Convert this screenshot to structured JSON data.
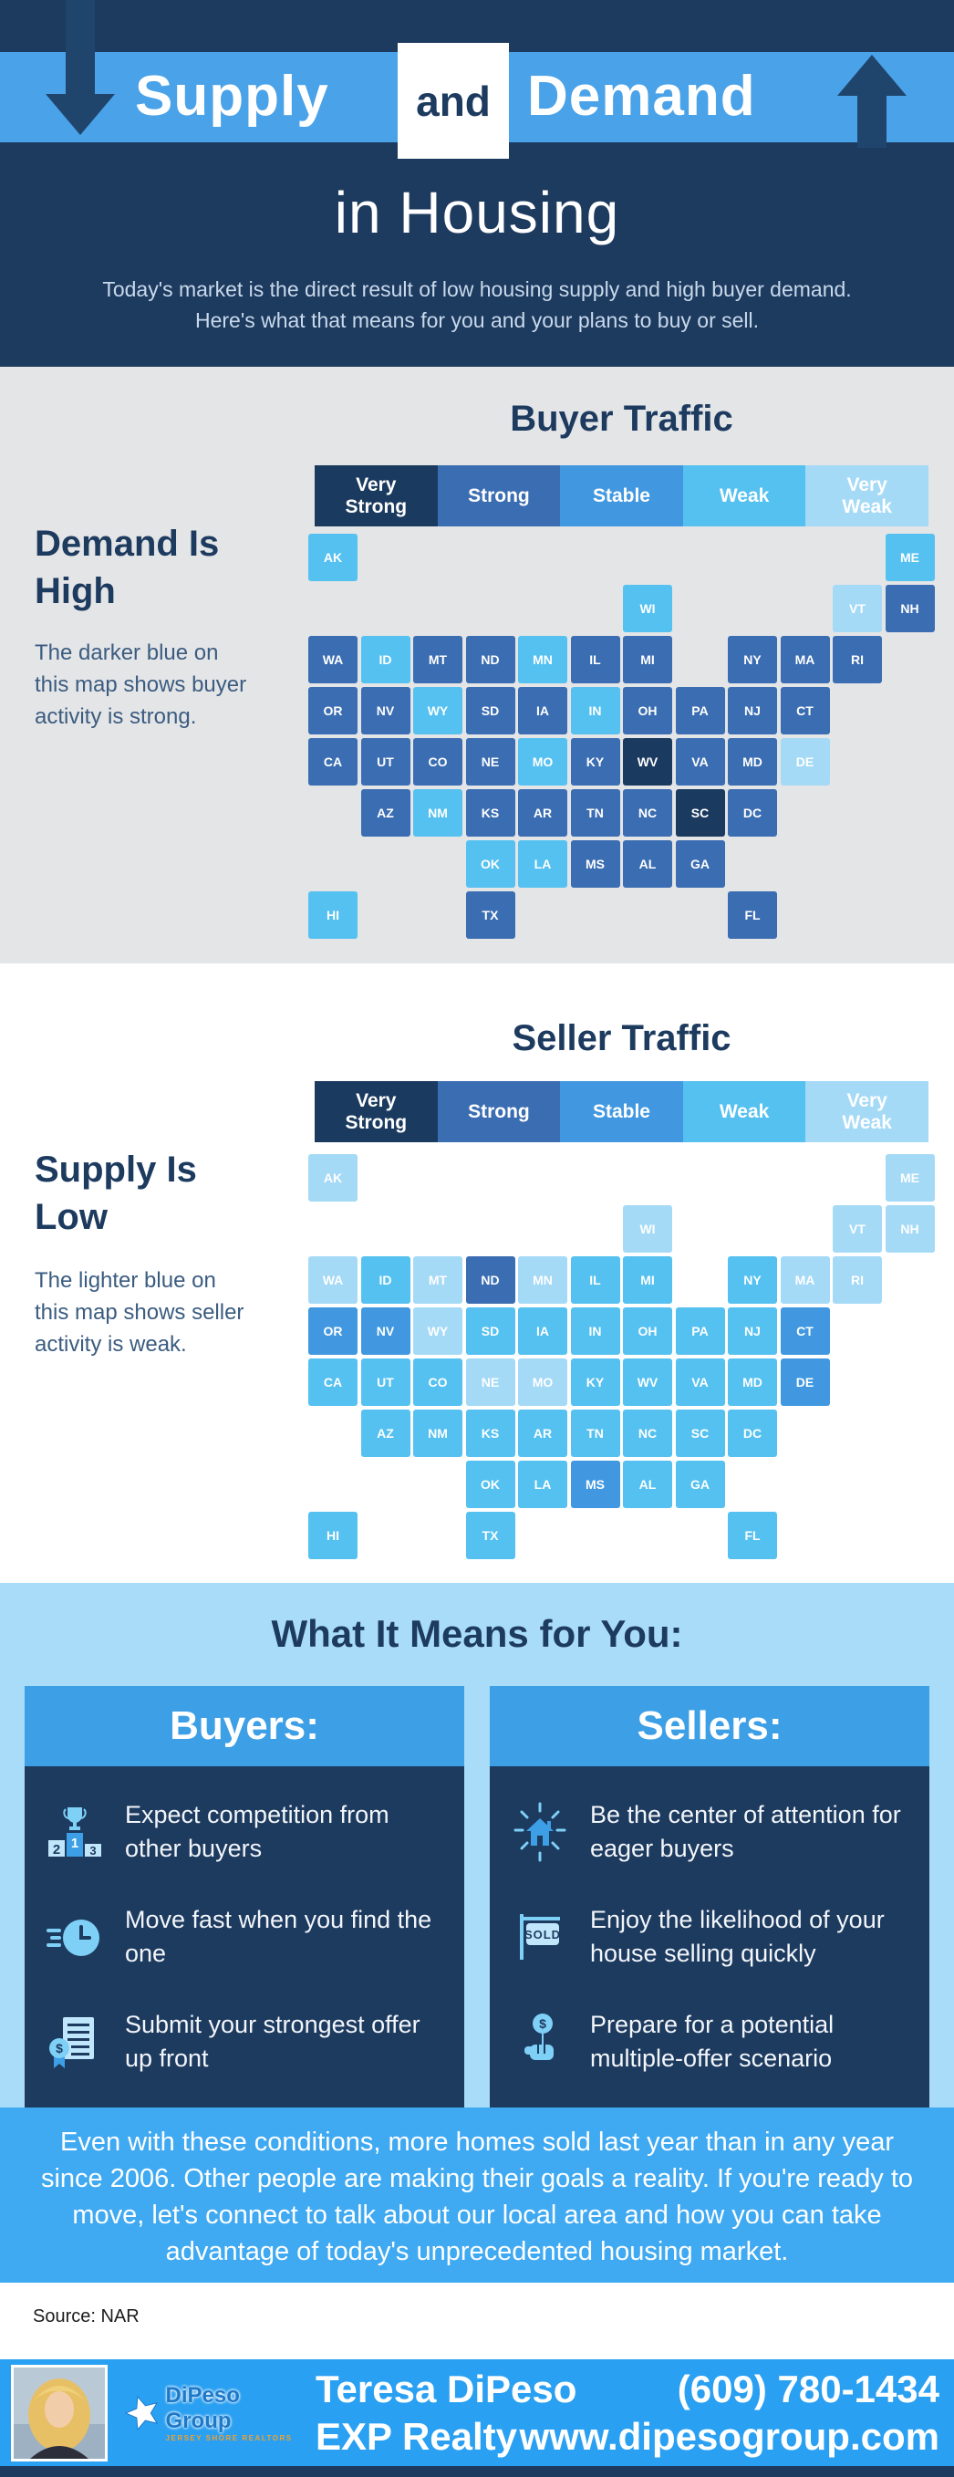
{
  "header": {
    "title_supply": "Supply",
    "title_and": "and",
    "title_demand": "Demand",
    "subtitle": "in Housing",
    "description": "Today's market is the direct result of low housing supply and high buyer demand. Here's what that means for you and your plans to buy or sell."
  },
  "legend": {
    "labels": [
      "Very\nStrong",
      "Strong",
      "Stable",
      "Weak",
      "Very\nWeak"
    ],
    "colors": [
      "#1b3a5f",
      "#3b6db2",
      "#4198e0",
      "#55c1f0",
      "#a5daf7"
    ]
  },
  "buyer_section": {
    "title": "Buyer Traffic",
    "heading": "Demand Is High",
    "text": "The darker blue on this map shows buyer activity is strong."
  },
  "seller_section": {
    "title": "Seller Traffic",
    "heading": "Supply Is Low",
    "text": "The lighter blue on this map shows seller activity is weak."
  },
  "chart_data": [
    {
      "type": "choropleth",
      "title": "Buyer Traffic",
      "legend": [
        "Very Strong",
        "Strong",
        "Stable",
        "Weak",
        "Very Weak"
      ],
      "states": {
        "WA": "strong",
        "OR": "strong",
        "CA": "strong",
        "NV": "strong",
        "ID": "weak",
        "MT": "strong",
        "WY": "weak",
        "UT": "strong",
        "AZ": "strong",
        "NM": "weak",
        "CO": "strong",
        "ND": "strong",
        "SD": "strong",
        "NE": "strong",
        "KS": "strong",
        "OK": "weak",
        "TX": "strong",
        "MN": "weak",
        "IA": "strong",
        "MO": "weak",
        "AR": "strong",
        "LA": "weak",
        "WI": "weak",
        "IL": "strong",
        "IN": "weak",
        "MI": "strong",
        "OH": "strong",
        "KY": "strong",
        "TN": "strong",
        "MS": "strong",
        "AL": "strong",
        "GA": "strong",
        "FL": "strong",
        "SC": "very_strong",
        "NC": "strong",
        "VA": "strong",
        "WV": "very_strong",
        "MD": "strong",
        "DE": "very_weak",
        "DC": "strong",
        "PA": "strong",
        "NJ": "strong",
        "NY": "strong",
        "CT": "strong",
        "RI": "strong",
        "MA": "strong",
        "VT": "very_weak",
        "NH": "strong",
        "ME": "weak",
        "AK": "weak",
        "HI": "weak"
      }
    },
    {
      "type": "choropleth",
      "title": "Seller Traffic",
      "legend": [
        "Very Strong",
        "Strong",
        "Stable",
        "Weak",
        "Very Weak"
      ],
      "states": {
        "WA": "very_weak",
        "OR": "stable",
        "CA": "weak",
        "NV": "stable",
        "ID": "weak",
        "MT": "very_weak",
        "WY": "very_weak",
        "UT": "weak",
        "AZ": "weak",
        "NM": "weak",
        "CO": "weak",
        "ND": "strong",
        "SD": "weak",
        "NE": "very_weak",
        "KS": "weak",
        "OK": "weak",
        "TX": "weak",
        "MN": "very_weak",
        "IA": "weak",
        "MO": "very_weak",
        "AR": "weak",
        "LA": "weak",
        "WI": "very_weak",
        "IL": "weak",
        "IN": "weak",
        "MI": "weak",
        "OH": "weak",
        "KY": "weak",
        "TN": "weak",
        "MS": "stable",
        "AL": "weak",
        "GA": "weak",
        "FL": "weak",
        "SC": "weak",
        "NC": "weak",
        "VA": "weak",
        "WV": "weak",
        "MD": "weak",
        "DE": "stable",
        "DC": "weak",
        "PA": "weak",
        "NJ": "weak",
        "NY": "weak",
        "CT": "stable",
        "RI": "very_weak",
        "MA": "very_weak",
        "VT": "very_weak",
        "NH": "very_weak",
        "ME": "very_weak",
        "AK": "very_weak",
        "HI": "weak"
      }
    }
  ],
  "map_layout": {
    "AK": [
      0,
      0
    ],
    "ME": [
      11,
      0
    ],
    "WI": [
      6,
      1
    ],
    "VT": [
      10,
      1
    ],
    "NH": [
      11,
      1
    ],
    "WA": [
      0,
      2
    ],
    "ID": [
      1,
      2
    ],
    "MT": [
      2,
      2
    ],
    "ND": [
      3,
      2
    ],
    "MN": [
      4,
      2
    ],
    "IL": [
      5,
      2
    ],
    "MI": [
      6,
      2
    ],
    "NY": [
      8,
      2
    ],
    "MA": [
      9,
      2
    ],
    "RI": [
      10,
      2
    ],
    "OR": [
      0,
      3
    ],
    "NV": [
      1,
      3
    ],
    "WY": [
      2,
      3
    ],
    "SD": [
      3,
      3
    ],
    "IA": [
      4,
      3
    ],
    "IN": [
      5,
      3
    ],
    "OH": [
      6,
      3
    ],
    "PA": [
      7,
      3
    ],
    "NJ": [
      8,
      3
    ],
    "CT": [
      9,
      3
    ],
    "CA": [
      0,
      4
    ],
    "UT": [
      1,
      4
    ],
    "CO": [
      2,
      4
    ],
    "NE": [
      3,
      4
    ],
    "MO": [
      4,
      4
    ],
    "KY": [
      5,
      4
    ],
    "WV": [
      6,
      4
    ],
    "VA": [
      7,
      4
    ],
    "MD": [
      8,
      4
    ],
    "DE": [
      9,
      4
    ],
    "AZ": [
      1,
      5
    ],
    "NM": [
      2,
      5
    ],
    "KS": [
      3,
      5
    ],
    "AR": [
      4,
      5
    ],
    "TN": [
      5,
      5
    ],
    "NC": [
      6,
      5
    ],
    "SC": [
      7,
      5
    ],
    "DC": [
      8,
      5
    ],
    "OK": [
      3,
      6
    ],
    "LA": [
      4,
      6
    ],
    "MS": [
      5,
      6
    ],
    "AL": [
      6,
      6
    ],
    "GA": [
      7,
      6
    ],
    "HI": [
      0,
      7
    ],
    "TX": [
      3,
      7
    ],
    "FL": [
      8,
      7
    ]
  },
  "means_section": {
    "title": "What It Means for You:",
    "buyers": {
      "title": "Buyers:",
      "items": [
        {
          "icon": "podium-trophy-icon",
          "text": "Expect competition from other buyers"
        },
        {
          "icon": "clock-icon",
          "text": "Move fast when you find the one"
        },
        {
          "icon": "award-offer-icon",
          "text": "Submit your strongest offer up front"
        }
      ]
    },
    "sellers": {
      "title": "Sellers:",
      "items": [
        {
          "icon": "house-spotlight-icon",
          "text": "Be the center of attention for eager buyers"
        },
        {
          "icon": "sold-sign-icon",
          "text": "Enjoy the likelihood of your house selling quickly"
        },
        {
          "icon": "offer-hand-icon",
          "text": "Prepare for a potential multiple-offer scenario"
        }
      ]
    }
  },
  "conclusion": "Even with these conditions, more homes sold last year than in any year since 2006. Other people are making their goals a reality. If you're ready to move, let's connect to talk about our local area and how you can take advantage of today's unprecedented housing market.",
  "source": "Source: NAR",
  "footer": {
    "name": "Teresa DiPeso",
    "company": "EXP Realty",
    "phone": "(609) 780-1434",
    "website": "www.dipesogroup.com",
    "logo_text": "DiPeso Group",
    "logo_tagline": "JERSEY SHORE REALTORS"
  }
}
